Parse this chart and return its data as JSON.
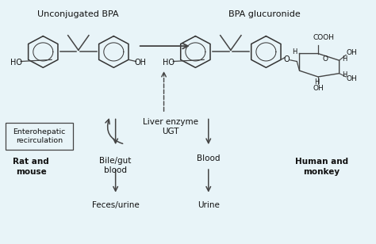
{
  "background_color": "#e8f4f8",
  "title_bpa": "Unconjugated BPA",
  "title_glucuronide": "BPA glucuronide",
  "label_liver": "Liver enzyme\nUGT",
  "label_enterohepatic": "Enterohepatic\nrecirculation",
  "label_rat": "Rat and\nmouse",
  "label_bile": "Bile/gut\nblood",
  "label_blood": "Blood",
  "label_human": "Human and\nmonkey",
  "label_feces": "Feces/urine",
  "label_urine": "Urine",
  "text_color": "#111111",
  "line_color": "#444444",
  "box_edge_color": "#555555"
}
